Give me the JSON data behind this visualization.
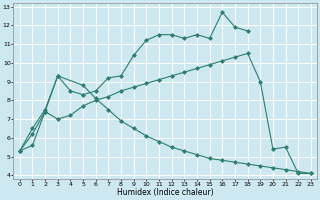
{
  "xlabel": "Humidex (Indice chaleur)",
  "bg_color": "#cde8f0",
  "grid_color": "#ffffff",
  "line_color": "#2e7d6e",
  "xlim": [
    -0.5,
    23.5
  ],
  "ylim": [
    3.8,
    13.2
  ],
  "xticks": [
    0,
    1,
    2,
    3,
    4,
    5,
    6,
    7,
    8,
    9,
    10,
    11,
    12,
    13,
    14,
    15,
    16,
    17,
    18,
    19,
    20,
    21,
    22,
    23
  ],
  "yticks": [
    4,
    5,
    6,
    7,
    8,
    9,
    10,
    11,
    12,
    13
  ],
  "line1_x": [
    0,
    1,
    2,
    3,
    4,
    5,
    6,
    7,
    8,
    9,
    10,
    11,
    12,
    13,
    14,
    15,
    16,
    17,
    18
  ],
  "line1_y": [
    5.3,
    6.5,
    7.5,
    9.3,
    8.5,
    8.3,
    8.5,
    9.2,
    9.3,
    10.4,
    11.2,
    11.5,
    11.5,
    11.3,
    11.5,
    11.3,
    12.7,
    11.9,
    11.7
  ],
  "line2_x": [
    0,
    1,
    2,
    3,
    4,
    5,
    6,
    7,
    8,
    9,
    10,
    11,
    12,
    13,
    14,
    15,
    16,
    17,
    18,
    19,
    20,
    21,
    22,
    23
  ],
  "line2_y": [
    5.3,
    6.2,
    7.4,
    7.0,
    7.2,
    7.7,
    8.0,
    8.2,
    8.5,
    8.7,
    8.9,
    9.1,
    9.3,
    9.5,
    9.7,
    9.9,
    10.1,
    10.3,
    10.5,
    9.0,
    5.4,
    5.5,
    4.1,
    4.1
  ],
  "line3_x": [
    0,
    1,
    2,
    3,
    5,
    6,
    7,
    8,
    9,
    10,
    11,
    12,
    13,
    14,
    15,
    16,
    17,
    18,
    19,
    20,
    21,
    22,
    23
  ],
  "line3_y": [
    5.3,
    5.6,
    7.4,
    9.3,
    8.8,
    8.1,
    7.5,
    6.9,
    6.5,
    6.1,
    5.8,
    5.5,
    5.3,
    5.1,
    4.9,
    4.8,
    4.7,
    4.6,
    4.5,
    4.4,
    4.3,
    4.2,
    4.1
  ]
}
